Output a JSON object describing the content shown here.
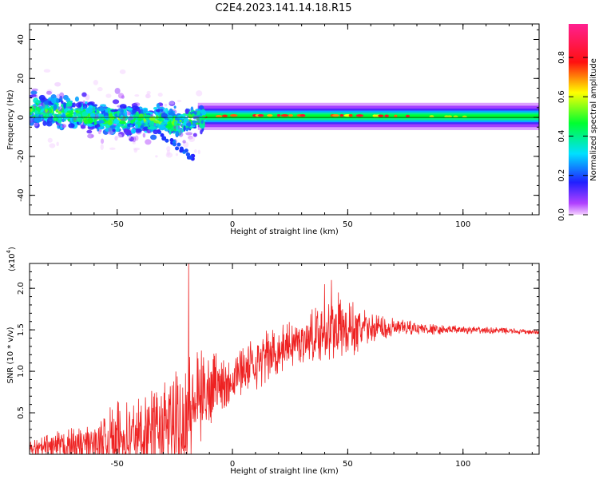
{
  "title": "C2E4.2023.141.14.18.R15",
  "colors": {
    "snr_line": "#ee2222",
    "axis": "#000000",
    "background": "#ffffff"
  },
  "chart_data": [
    {
      "type": "heatmap",
      "xlabel": "Height of straight line (km)",
      "ylabel": "Frequency (Hz)",
      "xlim": [
        -88,
        133
      ],
      "ylim": [
        -50,
        48
      ],
      "x_ticks": [
        -50,
        0,
        50,
        100
      ],
      "y_ticks": [
        -40,
        -20,
        0,
        20,
        40
      ],
      "grid": false,
      "colorbar": {
        "label": "Normalized spectral amplitude",
        "range": [
          0,
          1
        ],
        "ticks": [
          0.0,
          0.2,
          0.4,
          0.6,
          0.8
        ],
        "tick_labels": [
          "0.0",
          "0.2",
          "0.4",
          "0.6",
          "0.8"
        ],
        "colormap": "rainbow (magenta-purple-blue-cyan-green-yellow-red-pink)"
      },
      "centerline": [
        {
          "x": -85,
          "y": 4
        },
        {
          "x": -70,
          "y": 2
        },
        {
          "x": -55,
          "y": -1
        },
        {
          "x": -40,
          "y": -1
        },
        {
          "x": -30,
          "y": -2
        },
        {
          "x": -22,
          "y": -3
        },
        {
          "x": -15,
          "y": 0
        },
        {
          "x": 0,
          "y": 1
        },
        {
          "x": 50,
          "y": 1
        },
        {
          "x": 133,
          "y": 0
        }
      ]
    },
    {
      "type": "line",
      "xlabel": "Height of straight line (km)",
      "ylabel": "SNR (10 * v/v)",
      "y_multiplier": "(x10",
      "y_multiplier_exp": "4",
      "y_multiplier_close": ")",
      "xlim": [
        -88,
        133
      ],
      "ylim": [
        0,
        2.3
      ],
      "x_ticks": [
        -50,
        0,
        50,
        100
      ],
      "y_ticks": [
        0.5,
        1.0,
        1.5,
        2.0
      ],
      "y_tick_labels": [
        "0.5",
        "1.0",
        "1.5",
        "2.0"
      ],
      "grid": false,
      "series": [
        {
          "envelope": [
            {
              "x": -88,
              "base": 0.05,
              "amp": 0.1
            },
            {
              "x": -80,
              "base": 0.07,
              "amp": 0.18
            },
            {
              "x": -70,
              "base": 0.1,
              "amp": 0.22
            },
            {
              "x": -60,
              "base": 0.12,
              "amp": 0.28
            },
            {
              "x": -50,
              "base": 0.2,
              "amp": 0.45
            },
            {
              "x": -40,
              "base": 0.25,
              "amp": 0.5
            },
            {
              "x": -30,
              "base": 0.3,
              "amp": 0.55
            },
            {
              "x": -22,
              "base": 0.38,
              "amp": 0.7
            },
            {
              "x": -18,
              "base": 0.55,
              "amp": 0.75
            },
            {
              "x": -12,
              "base": 0.75,
              "amp": 0.5
            },
            {
              "x": 0,
              "base": 0.95,
              "amp": 0.35
            },
            {
              "x": 10,
              "base": 1.1,
              "amp": 0.35
            },
            {
              "x": 20,
              "base": 1.25,
              "amp": 0.3
            },
            {
              "x": 30,
              "base": 1.38,
              "amp": 0.28
            },
            {
              "x": 40,
              "base": 1.48,
              "amp": 0.38
            },
            {
              "x": 50,
              "base": 1.5,
              "amp": 0.38
            },
            {
              "x": 60,
              "base": 1.52,
              "amp": 0.2
            },
            {
              "x": 70,
              "base": 1.52,
              "amp": 0.12
            },
            {
              "x": 80,
              "base": 1.52,
              "amp": 0.08
            },
            {
              "x": 90,
              "base": 1.5,
              "amp": 0.06
            },
            {
              "x": 100,
              "base": 1.5,
              "amp": 0.05
            },
            {
              "x": 115,
              "base": 1.49,
              "amp": 0.04
            },
            {
              "x": 133,
              "base": 1.47,
              "amp": 0.03
            }
          ],
          "spikes": [
            {
              "x": -19,
              "y": 2.3
            },
            {
              "x": 43,
              "y": 2.1
            },
            {
              "x": 40,
              "y": 2.05
            },
            {
              "x": 46,
              "y": 1.95
            }
          ]
        }
      ]
    }
  ]
}
